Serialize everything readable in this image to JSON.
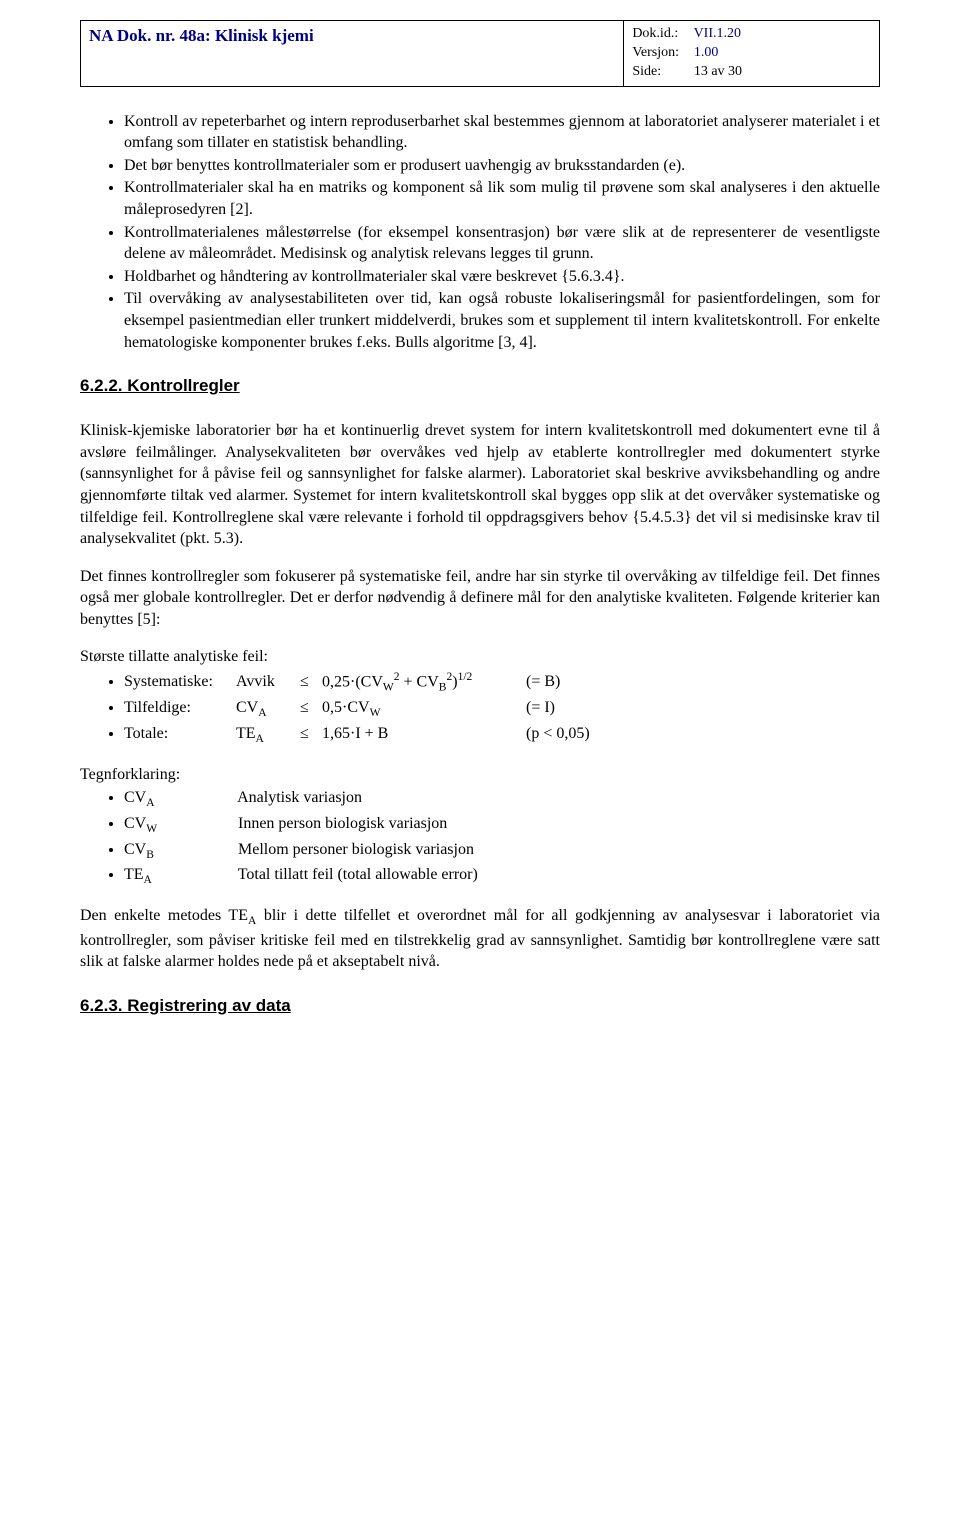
{
  "header": {
    "title": "NA Dok. nr. 48a: Klinisk kjemi",
    "dokid_label": "Dok.id.:",
    "dokid_value": "VII.1.20",
    "versjon_label": "Versjon:",
    "versjon_value": "1.00",
    "side_label": "Side:",
    "side_value": "13 av 30"
  },
  "bullets_top": [
    "Kontroll av repeterbarhet og intern reproduserbarhet skal bestemmes gjennom at laboratoriet analyserer materialet i et omfang som tillater en statistisk behandling.",
    "Det bør benyttes kontrollmaterialer som er produsert uavhengig av bruksstandarden (e).",
    "Kontrollmaterialer skal ha en matriks og komponent så lik som mulig til prøvene som skal analyseres i den aktuelle måleprosedyren [2].",
    "Kontrollmaterialenes målestørrelse (for eksempel konsentrasjon) bør være slik at de representerer de vesentligste delene av måleområdet. Medisinsk og analytisk relevans legges til grunn.",
    "Holdbarhet og håndtering av kontrollmaterialer skal være beskrevet {5.6.3.4}.",
    "Til overvåking av analysestabiliteten over tid, kan også robuste lokaliseringsmål for pasientfordelingen, som for eksempel pasientmedian eller trunkert middelverdi, brukes som et supplement til intern kvalitetskontroll. For enkelte hematologiske komponenter brukes f.eks. Bulls algoritme [3, 4]."
  ],
  "section_622": "6.2.2. Kontrollregler",
  "para_622_a": "Klinisk-kjemiske laboratorier bør ha et kontinuerlig drevet system for intern kvalitetskontroll med dokumentert evne til å avsløre feilmålinger. Analysekvaliteten bør overvåkes ved hjelp av etablerte kontrollregler med dokumentert styrke (sannsynlighet for å påvise feil og sannsynlighet for falske alarmer). Laboratoriet skal beskrive avviksbehandling og andre gjennomførte tiltak ved alarmer. Systemet for intern kvalitetskontroll skal bygges opp slik at det overvåker systematiske og tilfeldige feil. Kontrollreglene skal være relevante i forhold til oppdragsgivers behov {5.4.5.3} det vil si medisinske krav til analysekvalitet (pkt. 5.3).",
  "para_622_b": "Det finnes kontrollregler som fokuserer på systematiske feil, andre har sin styrke til overvåking av tilfeldige feil. Det finnes også mer globale kontrollregler. Det er derfor nødvendig å definere mål for den analytiske kvaliteten. Følgende kriterier kan benyttes [5]:",
  "formula_intro": "Største tillatte analytiske feil:",
  "formulas": [
    {
      "label": "Systematiske:",
      "sym_html": "Avvik",
      "op": "≤",
      "expr_html": "0,25·(CV<sub>W</sub><sup>2</sup> + CV<sub>B</sub><sup>2</sup>)<sup>1/2</sup>",
      "res": "(= B)"
    },
    {
      "label": "Tilfeldige:",
      "sym_html": "CV<sub>A</sub>",
      "op": "≤",
      "expr_html": "0,5·CV<sub>W</sub>",
      "res": "(= I)"
    },
    {
      "label": "Totale:",
      "sym_html": "TE<sub>A</sub>",
      "op": "≤",
      "expr_html": "1,65·I + B",
      "res": "(p < 0,05)"
    }
  ],
  "legend_intro": "Tegnforklaring:",
  "legend": [
    {
      "sym_html": "CV<sub>A</sub>",
      "desc": "Analytisk variasjon"
    },
    {
      "sym_html": "CV<sub>W</sub>",
      "desc": "Innen person biologisk variasjon"
    },
    {
      "sym_html": "CV<sub>B</sub>",
      "desc": "Mellom personer biologisk variasjon"
    },
    {
      "sym_html": "TE<sub>A</sub>",
      "desc": "Total tillatt feil (total allowable error)"
    }
  ],
  "para_622_c_html": "Den enkelte metodes TE<sub>A</sub> blir i dette tilfellet et overordnet mål for all godkjenning av analysesvar i laboratoriet via kontrollregler, som påviser kritiske feil med en tilstrekkelig grad av sannsynlighet. Samtidig bør kontrollreglene være satt slik at falske alarmer holdes nede på et akseptabelt nivå.",
  "section_623": "6.2.3. Registrering av data"
}
